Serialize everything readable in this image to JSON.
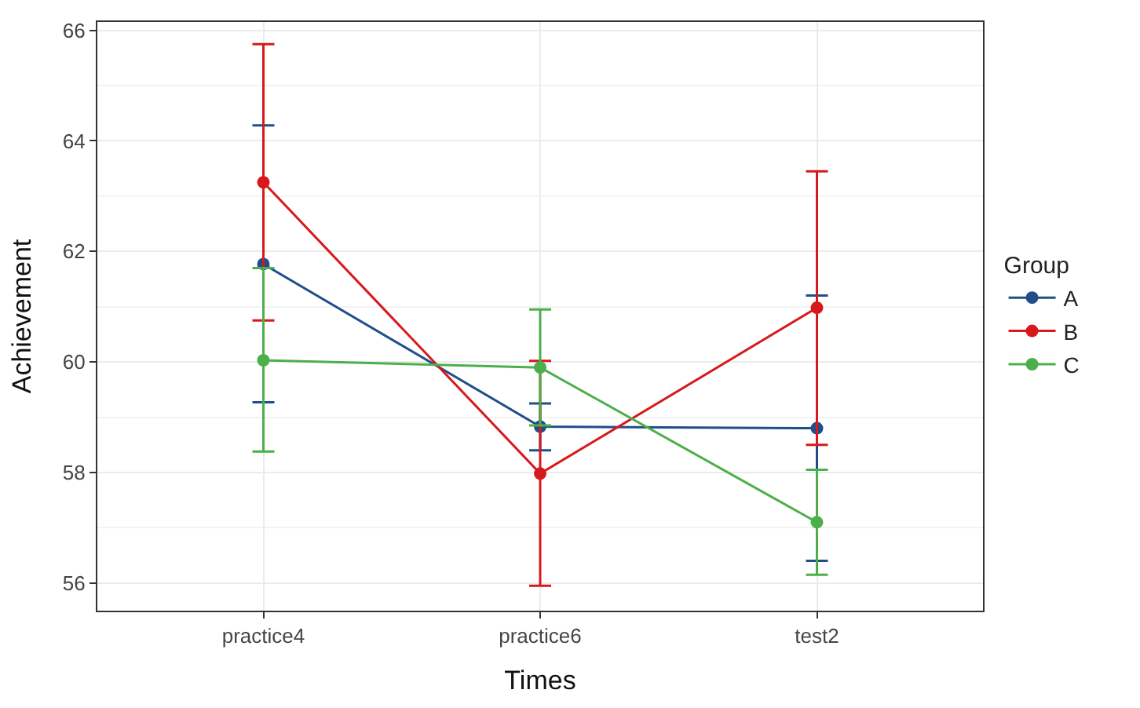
{
  "chart_data": {
    "type": "line",
    "xlabel": "Times",
    "ylabel": "Achievement",
    "legend_title": "Group",
    "categories": [
      "practice4",
      "practice6",
      "test2"
    ],
    "series": [
      {
        "name": "A",
        "color": "#1f4e89",
        "values": [
          61.77,
          58.83,
          58.8
        ],
        "errors": [
          [
            59.27,
            64.28
          ],
          [
            58.4,
            59.25
          ],
          [
            56.4,
            61.2
          ]
        ]
      },
      {
        "name": "B",
        "color": "#d7191c",
        "values": [
          63.25,
          57.98,
          60.98
        ],
        "errors": [
          [
            60.75,
            65.75
          ],
          [
            55.95,
            60.02
          ],
          [
            58.5,
            63.45
          ]
        ]
      },
      {
        "name": "C",
        "color": "#4daf4a",
        "values": [
          60.03,
          59.9,
          57.1
        ],
        "errors": [
          [
            58.38,
            61.7
          ],
          [
            58.85,
            60.95
          ],
          [
            56.15,
            58.05
          ]
        ]
      }
    ],
    "ylim": [
      55.5,
      66.15
    ],
    "yticks": [
      56,
      58,
      60,
      62,
      64,
      66
    ],
    "grid": true,
    "legend": "right",
    "marker": "circle",
    "line_style": "solid"
  }
}
